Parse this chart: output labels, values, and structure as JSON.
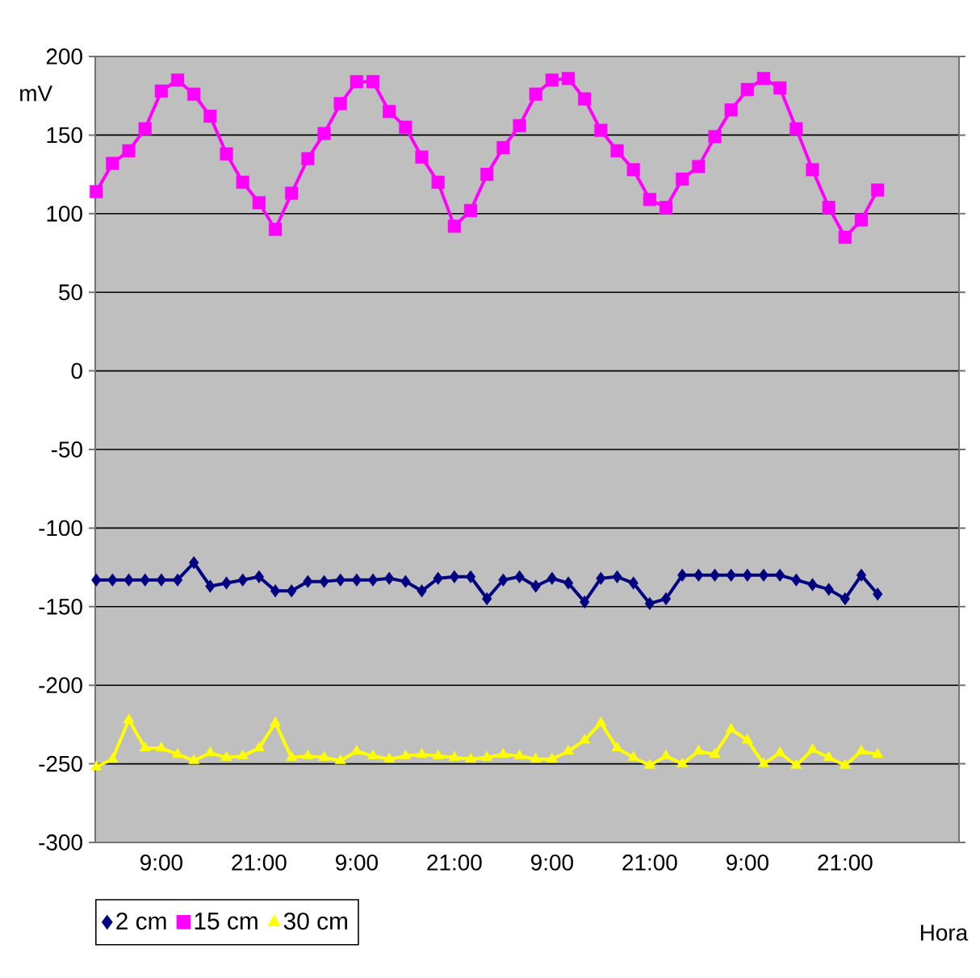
{
  "chart_data": {
    "type": "line",
    "xlabel": "Hora",
    "ylabel": "mV",
    "categories": [
      null,
      null,
      null,
      null,
      "9:00",
      null,
      null,
      null,
      null,
      null,
      "21:00",
      null,
      null,
      null,
      null,
      null,
      "9:00",
      null,
      null,
      null,
      null,
      null,
      "21:00",
      null,
      null,
      null,
      null,
      null,
      "9:00",
      null,
      null,
      null,
      null,
      null,
      "21:00",
      null,
      null,
      null,
      null,
      null,
      "9:00",
      null,
      null,
      null,
      null,
      null,
      "21:00",
      null,
      null
    ],
    "ylim": [
      -300,
      200
    ],
    "yticks": [
      -300,
      -250,
      -200,
      -150,
      -100,
      -50,
      0,
      50,
      100,
      150,
      200
    ],
    "grid": "y",
    "legend": "bottom",
    "series": [
      {
        "name": "2 cm",
        "color": "#000080",
        "marker": "diamond",
        "values": [
          -133,
          -133,
          -133,
          -133,
          -133,
          -133,
          -122,
          -137,
          -135,
          -133,
          -131,
          -140,
          -140,
          -134,
          -134,
          -133,
          -133,
          -133,
          -132,
          -134,
          -140,
          -132,
          -131,
          -131,
          -145,
          -133,
          -131,
          -137,
          -132,
          -135,
          -147,
          -132,
          -131,
          -135,
          -148,
          -145,
          -130,
          -130,
          -130,
          -130,
          -130,
          -130,
          -130,
          -133,
          -136,
          -139,
          -145,
          -130,
          -142
        ]
      },
      {
        "name": "15 cm",
        "color": "#ff00ff",
        "marker": "square",
        "values": [
          114,
          132,
          140,
          154,
          178,
          185,
          176,
          162,
          138,
          120,
          107,
          90,
          113,
          135,
          151,
          170,
          184,
          184,
          165,
          155,
          136,
          120,
          92,
          102,
          125,
          142,
          156,
          176,
          185,
          186,
          173,
          153,
          140,
          128,
          109,
          104,
          122,
          130,
          149,
          166,
          179,
          186,
          180,
          154,
          128,
          104,
          85,
          96,
          115
        ]
      },
      {
        "name": "30 cm",
        "color": "#ffff00",
        "marker": "triangle",
        "values": [
          -252,
          -247,
          -222,
          -240,
          -240,
          -244,
          -248,
          -243,
          -246,
          -245,
          -240,
          -224,
          -246,
          -245,
          -246,
          -248,
          -242,
          -245,
          -247,
          -245,
          -244,
          -245,
          -246,
          -247,
          -246,
          -244,
          -245,
          -247,
          -247,
          -242,
          -235,
          -224,
          -240,
          -246,
          -251,
          -245,
          -250,
          -242,
          -244,
          -228,
          -235,
          -250,
          -243,
          -251,
          -241,
          -246,
          -251,
          -242,
          -244
        ]
      }
    ]
  }
}
